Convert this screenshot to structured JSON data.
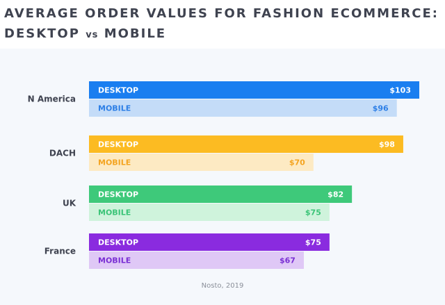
{
  "title": {
    "line1": "AVERAGE ORDER VALUES FOR FASHION ECOMMERCE:",
    "line2_a": "DESKTOP",
    "line2_vs": "vs",
    "line2_b": "MOBILE"
  },
  "source": "Nosto, 2019",
  "chart_data": {
    "type": "bar",
    "orientation": "horizontal",
    "unit": "$",
    "categories": [
      "N America",
      "DACH",
      "UK",
      "France"
    ],
    "series": [
      {
        "name": "DESKTOP",
        "values": [
          103,
          98,
          82,
          75
        ]
      },
      {
        "name": "MOBILE",
        "values": [
          96,
          70,
          75,
          67
        ]
      }
    ],
    "bar_labels": {
      "DESKTOP": [
        "$103",
        "$98",
        "$82",
        "$75"
      ],
      "MOBILE": [
        "$96",
        "$70",
        "$75",
        "$67"
      ]
    },
    "colors": {
      "DESKTOP": [
        "#1a7ef0",
        "#fcbb22",
        "#3ec97a",
        "#8a2bdf"
      ],
      "MOBILE": [
        "#c4dcf8",
        "#fdeac3",
        "#cff3dc",
        "#dfc8f6"
      ],
      "DESKTOP_text": [
        "#ffffff",
        "#ffffff",
        "#ffffff",
        "#ffffff"
      ],
      "MOBILE_text": [
        "#2d7fe6",
        "#f4a420",
        "#3ac477",
        "#7a2fd4"
      ]
    },
    "xlim": [
      0,
      103
    ],
    "grid": false,
    "legend": "none"
  }
}
